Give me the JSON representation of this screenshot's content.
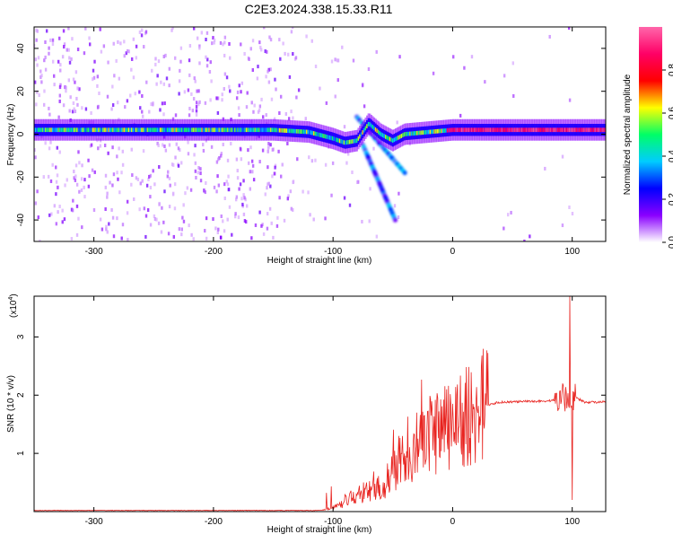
{
  "title": "C2E3.2024.338.15.33.R11",
  "chart_data": [
    {
      "type": "heatmap",
      "title": "C2E3.2024.338.15.33.R11",
      "xlabel": "Height of straight line (km)",
      "ylabel": "Frequency (Hz)",
      "xlim": [
        -350,
        128
      ],
      "ylim": [
        -50,
        50
      ],
      "xticks": [
        -300,
        -200,
        -100,
        0,
        100
      ],
      "yticks": [
        -40,
        -20,
        0,
        20,
        40
      ],
      "colorbar": {
        "label": "Normalized spectral amplitude",
        "range": [
          0.0,
          1.0
        ],
        "ticks": [
          0.0,
          0.2,
          0.4,
          0.6,
          0.8
        ],
        "tick_labels": [
          "0.0",
          "0.2",
          "0.4",
          "0.6",
          "0.8"
        ],
        "colormap": [
          "#ffffff",
          "#8a00ff",
          "#0000ff",
          "#00ccff",
          "#00ff66",
          "#ffff00",
          "#ff0000",
          "#ff0066",
          "#ff66aa"
        ]
      },
      "ridge_line": {
        "description_units": "frequency in Hz vs height in km",
        "x": [
          -350,
          -300,
          -250,
          -200,
          -150,
          -120,
          -100,
          -90,
          -80,
          -70,
          -60,
          -50,
          -40,
          -20,
          0,
          50,
          90,
          100,
          128
        ],
        "y": [
          2,
          2,
          2,
          2,
          2,
          1,
          -2,
          -4,
          -3,
          5,
          0,
          -3,
          0,
          1,
          2,
          2,
          2,
          2,
          2
        ]
      },
      "branches": [
        {
          "x": [
            -80,
            -40
          ],
          "y": [
            8,
            -18
          ]
        },
        {
          "x": [
            -75,
            -48
          ],
          "y": [
            -5,
            -40
          ]
        }
      ]
    },
    {
      "type": "line",
      "xlabel": "Height of straight line (km)",
      "ylabel": "SNR (10 * v/v)",
      "multiplier": "(x10",
      "multiplier_exp": "4",
      "xlim": [
        -350,
        128
      ],
      "ylim": [
        0,
        3.7
      ],
      "xticks": [
        -300,
        -200,
        -100,
        0,
        100
      ],
      "yticks": [
        1,
        2,
        3
      ],
      "color": "#e8231f",
      "envelope": {
        "x": [
          -350,
          -110,
          -95,
          -80,
          -60,
          -40,
          -20,
          0,
          20,
          40,
          80,
          95,
          100,
          110,
          128
        ],
        "y": [
          0.02,
          0.02,
          0.1,
          0.3,
          0.4,
          0.9,
          1.3,
          1.5,
          1.8,
          1.88,
          1.9,
          1.95,
          2.0,
          1.88,
          1.88
        ]
      },
      "spikes": [
        {
          "x": 98,
          "y": 3.7
        },
        {
          "x": 100,
          "y": 0.2
        },
        {
          "x": 92,
          "y": 2.2
        },
        {
          "x": -5,
          "y": 2.1
        },
        {
          "x": -30,
          "y": 1.7
        },
        {
          "x": -45,
          "y": 1.3
        }
      ]
    }
  ]
}
